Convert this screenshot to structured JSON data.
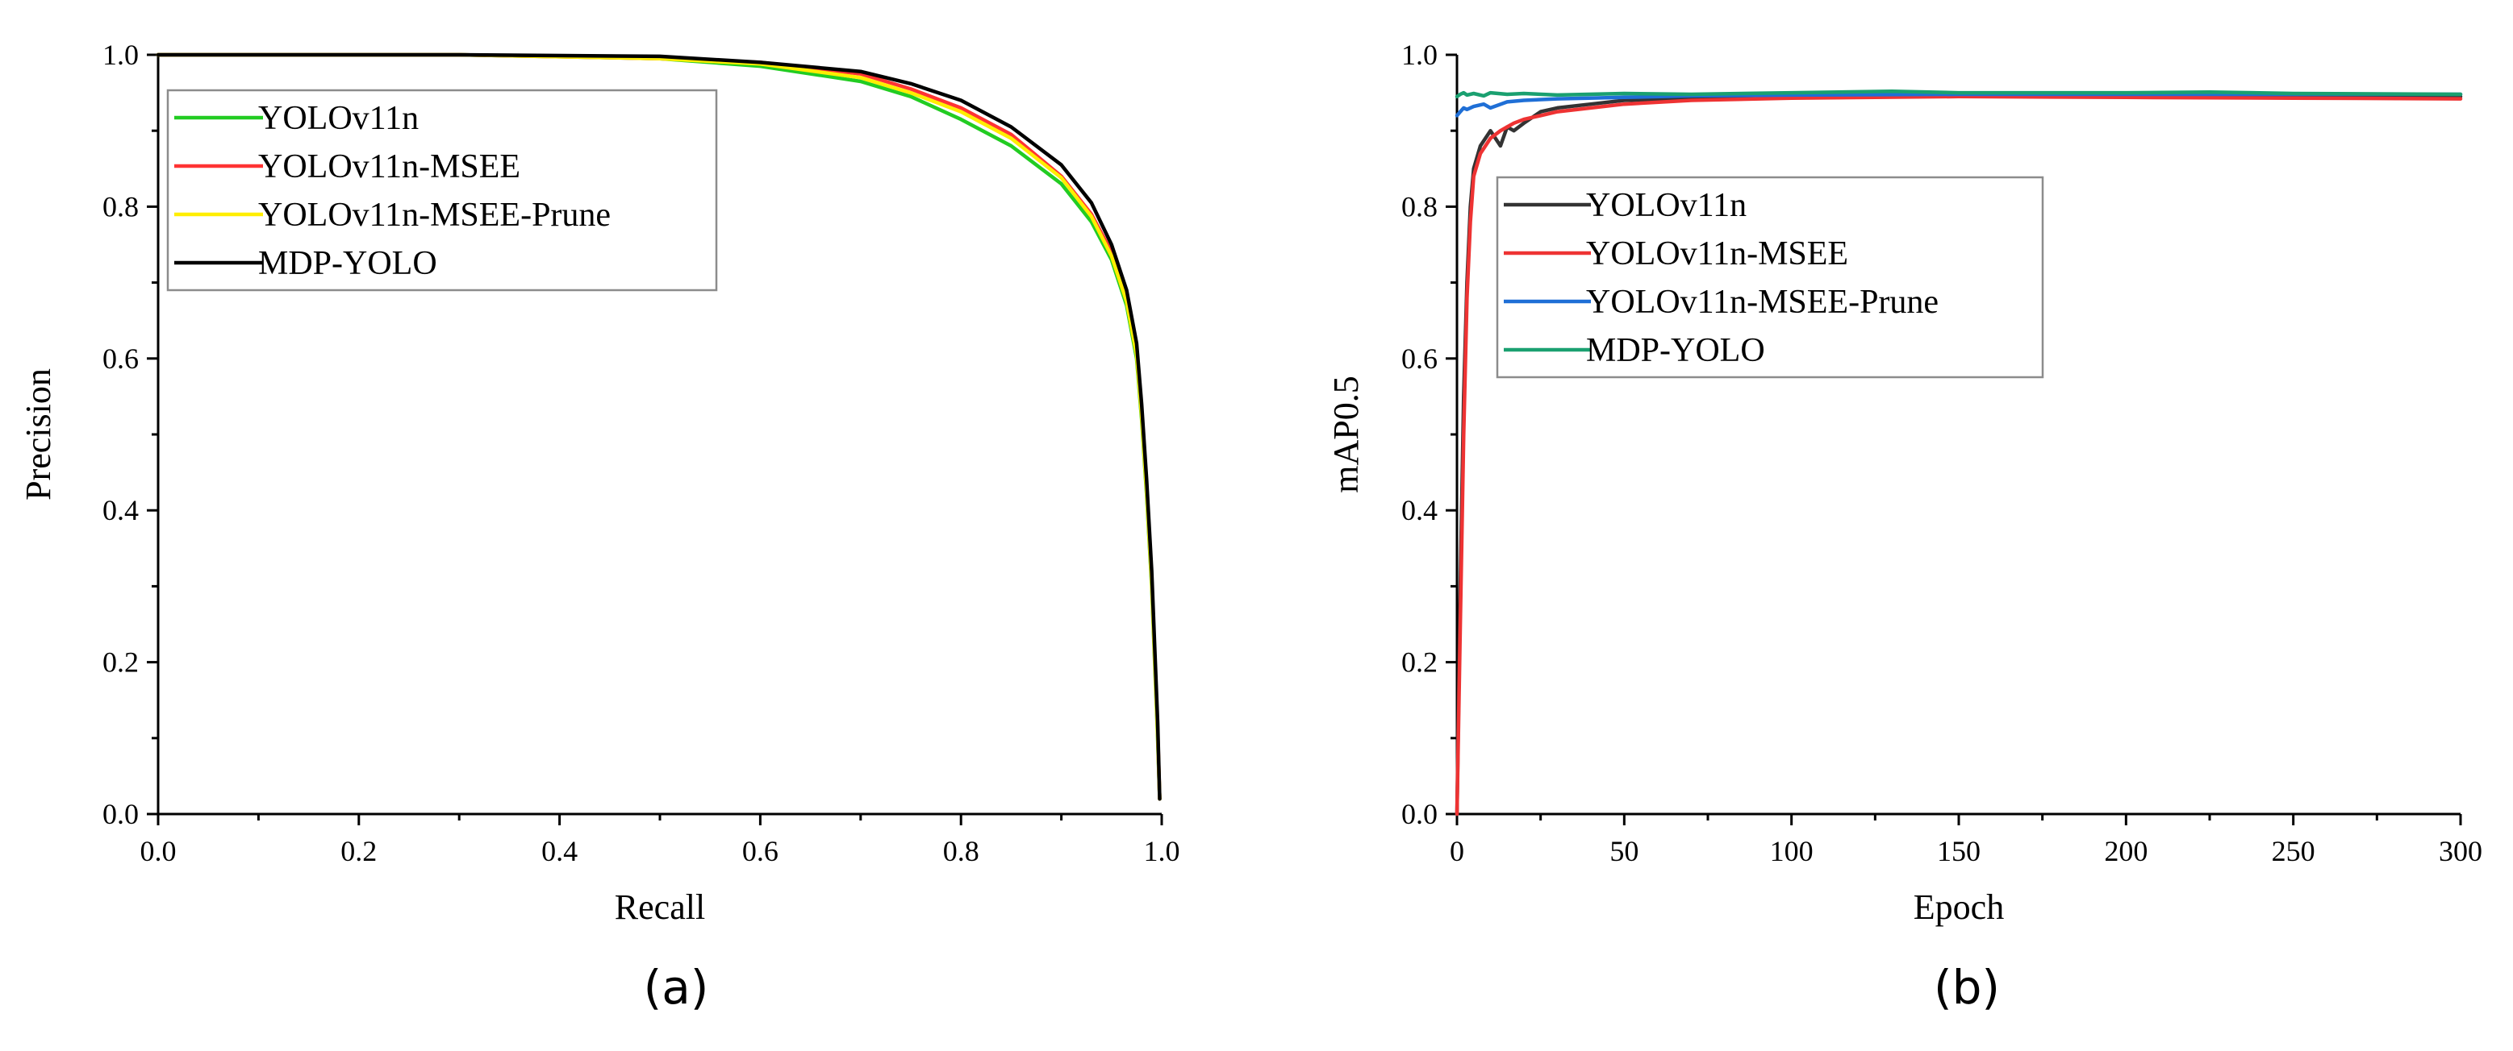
{
  "chart_data": [
    {
      "type": "line",
      "panel_label": "(a)",
      "xlabel": "Recall",
      "ylabel": "Precision",
      "xlim": [
        0.0,
        1.0
      ],
      "ylim": [
        0.0,
        1.0
      ],
      "x_ticks": [
        "0.0",
        "0.2",
        "0.4",
        "0.6",
        "0.8",
        "1.0"
      ],
      "y_ticks": [
        "0.0",
        "0.2",
        "0.4",
        "0.6",
        "0.8",
        "1.0"
      ],
      "legend_position": "top-left",
      "series": [
        {
          "name": "YOLOv11n",
          "color": "#22cc22",
          "x": [
            0,
            0.3,
            0.5,
            0.6,
            0.7,
            0.75,
            0.8,
            0.85,
            0.9,
            0.93,
            0.95,
            0.965,
            0.975,
            0.98,
            0.985,
            0.99,
            0.993,
            0.996,
            0.998
          ],
          "y": [
            1.0,
            1.0,
            0.995,
            0.985,
            0.965,
            0.945,
            0.915,
            0.88,
            0.83,
            0.78,
            0.73,
            0.67,
            0.6,
            0.52,
            0.42,
            0.3,
            0.2,
            0.1,
            0.02
          ]
        },
        {
          "name": "YOLOv11n-MSEE",
          "color": "#ff3333",
          "x": [
            0,
            0.3,
            0.5,
            0.6,
            0.7,
            0.75,
            0.8,
            0.85,
            0.9,
            0.93,
            0.95,
            0.965,
            0.975,
            0.98,
            0.985,
            0.99,
            0.993,
            0.996,
            0.998
          ],
          "y": [
            1.0,
            1.0,
            0.995,
            0.99,
            0.975,
            0.955,
            0.93,
            0.895,
            0.84,
            0.79,
            0.74,
            0.68,
            0.61,
            0.53,
            0.43,
            0.31,
            0.21,
            0.11,
            0.02
          ]
        },
        {
          "name": "YOLOv11n-MSEE-Prune",
          "color": "#ffee00",
          "x": [
            0,
            0.3,
            0.5,
            0.6,
            0.7,
            0.75,
            0.8,
            0.85,
            0.9,
            0.93,
            0.95,
            0.965,
            0.975,
            0.98,
            0.985,
            0.99,
            0.993,
            0.996,
            0.998
          ],
          "y": [
            1.0,
            1.0,
            0.995,
            0.988,
            0.97,
            0.95,
            0.925,
            0.89,
            0.838,
            0.787,
            0.735,
            0.675,
            0.605,
            0.525,
            0.425,
            0.305,
            0.205,
            0.105,
            0.02
          ]
        },
        {
          "name": "MDP-YOLO",
          "color": "#000000",
          "x": [
            0,
            0.3,
            0.5,
            0.6,
            0.7,
            0.75,
            0.8,
            0.85,
            0.9,
            0.93,
            0.95,
            0.965,
            0.975,
            0.98,
            0.985,
            0.99,
            0.993,
            0.996,
            0.998
          ],
          "y": [
            1.0,
            1.0,
            0.998,
            0.99,
            0.978,
            0.962,
            0.94,
            0.905,
            0.855,
            0.805,
            0.75,
            0.69,
            0.62,
            0.54,
            0.44,
            0.32,
            0.22,
            0.12,
            0.02
          ]
        }
      ]
    },
    {
      "type": "line",
      "panel_label": "(b)",
      "xlabel": "Epoch",
      "ylabel": "mAP0.5",
      "xlim": [
        0,
        300
      ],
      "ylim": [
        0.0,
        1.0
      ],
      "x_ticks": [
        "0",
        "50",
        "100",
        "150",
        "200",
        "250",
        "300"
      ],
      "y_ticks": [
        "0.0",
        "0.2",
        "0.4",
        "0.6",
        "0.8",
        "1.0"
      ],
      "legend_position": "top-left",
      "series": [
        {
          "name": "YOLOv11n",
          "color": "#333333",
          "x": [
            0,
            1,
            2,
            3,
            4,
            5,
            7,
            10,
            13,
            15,
            17,
            20,
            25,
            30,
            40,
            50,
            70,
            100,
            150,
            200,
            250,
            300
          ],
          "y": [
            0.0,
            0.3,
            0.55,
            0.7,
            0.8,
            0.85,
            0.88,
            0.9,
            0.88,
            0.905,
            0.9,
            0.91,
            0.925,
            0.93,
            0.935,
            0.94,
            0.942,
            0.945,
            0.946,
            0.945,
            0.946,
            0.945
          ]
        },
        {
          "name": "YOLOv11n-MSEE",
          "color": "#ee3333",
          "x": [
            0,
            1,
            2,
            3,
            4,
            5,
            7,
            10,
            13,
            15,
            17,
            20,
            25,
            30,
            40,
            50,
            70,
            100,
            150,
            200,
            250,
            300
          ],
          "y": [
            0.0,
            0.25,
            0.5,
            0.68,
            0.78,
            0.84,
            0.87,
            0.89,
            0.9,
            0.905,
            0.91,
            0.915,
            0.92,
            0.925,
            0.93,
            0.935,
            0.94,
            0.943,
            0.945,
            0.944,
            0.943,
            0.942
          ]
        },
        {
          "name": "YOLOv11n-MSEE-Prune",
          "color": "#1f6fd6",
          "x": [
            0,
            1,
            2,
            3,
            5,
            8,
            10,
            15,
            20,
            30,
            50,
            70,
            100,
            150,
            200,
            250,
            300
          ],
          "y": [
            0.92,
            0.925,
            0.93,
            0.928,
            0.932,
            0.935,
            0.93,
            0.938,
            0.94,
            0.942,
            0.944,
            0.946,
            0.947,
            0.948,
            0.948,
            0.948,
            0.948
          ]
        },
        {
          "name": "MDP-YOLO",
          "color": "#1aa070",
          "x": [
            0,
            1,
            2,
            3,
            5,
            8,
            10,
            15,
            20,
            30,
            50,
            70,
            100,
            130,
            150,
            200,
            225,
            250,
            300
          ],
          "y": [
            0.945,
            0.948,
            0.95,
            0.947,
            0.949,
            0.946,
            0.95,
            0.948,
            0.949,
            0.947,
            0.949,
            0.948,
            0.95,
            0.952,
            0.95,
            0.95,
            0.951,
            0.949,
            0.948
          ]
        }
      ]
    }
  ]
}
